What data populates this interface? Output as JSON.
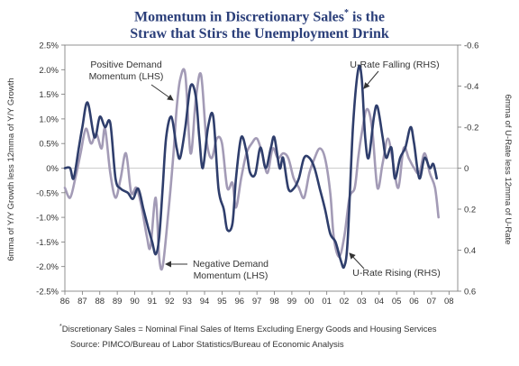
{
  "title": {
    "line1_pre": "Momentum in Discretionary Sales",
    "line1_mark": "*",
    "line1_post": " is the",
    "line2": "Straw that Stirs the Unemployment Drink"
  },
  "footnote": {
    "mark": "*",
    "text": "Discretionary Sales = Nominal Final Sales of Items Excluding Energy Goods and Housing Services"
  },
  "source": "Source: PIMCO/Bureau of Labor Statistics/Bureau of Economic Analysis",
  "colors": {
    "demand_series": "#a39bb6",
    "urate_series": "#2f3e6c",
    "axis": "#777777",
    "text": "#333333"
  },
  "chart_data": {
    "type": "line",
    "ylabel_left": "6mma of Y/Y Growth less 12mma of Y/Y Growth",
    "ylabel_right": "6mma of U-Rate less 12mma of U-Rate",
    "left_axis": {
      "range": [
        -2.5,
        2.5
      ],
      "ticks": [
        2.5,
        2.0,
        1.5,
        1.0,
        0.5,
        0,
        -0.5,
        -1.0,
        -1.5,
        -2.0,
        -2.5
      ],
      "tick_labels": [
        "2.5%",
        "2.0%",
        "1.5%",
        "1.0%",
        "0.5%",
        "0%",
        "-0.5%",
        "-1.0%",
        "-1.5%",
        "-2.0%",
        "-2.5%"
      ]
    },
    "right_axis": {
      "range": [
        0.6,
        -0.6
      ],
      "inverted": true,
      "ticks": [
        -0.6,
        -0.4,
        -0.2,
        0,
        0.2,
        0.4,
        0.6
      ],
      "tick_labels": [
        "-0.6",
        "-0.4",
        "-0.2",
        "0",
        "0.2",
        "0.4",
        "0.6"
      ]
    },
    "x_axis": {
      "range": [
        1986,
        2008.5
      ],
      "ticks": [
        1986,
        1987,
        1988,
        1989,
        1990,
        1991,
        1992,
        1993,
        1994,
        1995,
        1996,
        1997,
        1998,
        1999,
        2000,
        2001,
        2002,
        2003,
        2004,
        2005,
        2006,
        2007,
        2008
      ],
      "tick_labels": [
        "86",
        "87",
        "88",
        "89",
        "90",
        "91",
        "92",
        "93",
        "94",
        "95",
        "96",
        "97",
        "98",
        "99",
        "00",
        "01",
        "02",
        "03",
        "04",
        "05",
        "06",
        "07",
        "08"
      ]
    },
    "series": [
      {
        "axis": "left",
        "x": [
          1986.0,
          1986.3,
          1986.6,
          1986.9,
          1987.2,
          1987.5,
          1987.8,
          1988.1,
          1988.3,
          1988.6,
          1988.9,
          1989.2,
          1989.5,
          1989.8,
          1990.1,
          1990.4,
          1990.7,
          1990.9,
          1991.2,
          1991.4,
          1991.6,
          1991.9,
          1992.2,
          1992.4,
          1992.6,
          1992.9,
          1993.2,
          1993.5,
          1993.8,
          1994.1,
          1994.4,
          1994.7,
          1995.0,
          1995.3,
          1995.6,
          1995.8,
          1996.1,
          1996.4,
          1996.7,
          1997.0,
          1997.3,
          1997.6,
          1997.9,
          1998.2,
          1998.5,
          1998.8,
          1999.1,
          1999.4,
          1999.7,
          2000.0,
          2000.3,
          2000.6,
          2000.9,
          2001.2,
          2001.4,
          2001.7,
          2002.0,
          2002.3,
          2002.6,
          2002.8,
          2003.0,
          2003.3,
          2003.6,
          2003.9,
          2004.2,
          2004.5,
          2004.8,
          2005.1,
          2005.4,
          2005.7,
          2006.0,
          2006.3,
          2006.6,
          2006.9,
          2007.2,
          2007.4
        ],
        "values": [
          -0.4,
          -0.6,
          -0.2,
          0.3,
          0.8,
          0.5,
          0.7,
          0.4,
          0.8,
          -0.1,
          -0.6,
          -0.2,
          0.3,
          -0.5,
          -0.4,
          -0.8,
          -1.4,
          -1.6,
          -0.6,
          -1.8,
          -2.0,
          -1.0,
          0.2,
          1.2,
          1.8,
          1.9,
          0.3,
          1.4,
          1.9,
          0.6,
          0.2,
          0.6,
          0.5,
          -0.4,
          -0.3,
          -0.8,
          -0.2,
          0.3,
          0.5,
          0.6,
          0.3,
          -0.1,
          0.4,
          0.2,
          0.3,
          0.2,
          -0.2,
          -0.4,
          -0.6,
          -0.1,
          0.2,
          0.4,
          0.2,
          -0.5,
          -1.4,
          -1.8,
          -1.4,
          -0.6,
          -0.4,
          0.2,
          0.7,
          1.2,
          0.8,
          -0.4,
          0.1,
          0.6,
          0.1,
          -0.4,
          0.4,
          0.2,
          0.0,
          -0.1,
          0.3,
          -0.1,
          -0.4,
          -1.0
        ]
      },
      {
        "axis": "right",
        "x": [
          1986.0,
          1986.3,
          1986.5,
          1986.8,
          1987.0,
          1987.3,
          1987.7,
          1988.0,
          1988.3,
          1988.6,
          1988.9,
          1989.2,
          1989.6,
          1989.9,
          1990.2,
          1990.5,
          1990.8,
          1991.0,
          1991.2,
          1991.4,
          1991.6,
          1991.8,
          1992.1,
          1992.4,
          1992.6,
          1992.9,
          1993.2,
          1993.5,
          1993.7,
          1993.9,
          1994.2,
          1994.5,
          1994.8,
          1995.1,
          1995.3,
          1995.6,
          1995.8,
          1996.1,
          1996.4,
          1996.6,
          1996.9,
          1997.2,
          1997.5,
          1997.8,
          1998.0,
          1998.3,
          1998.5,
          1998.8,
          1999.1,
          1999.4,
          1999.7,
          2000.0,
          2000.3,
          2000.6,
          2000.9,
          2001.2,
          2001.5,
          2001.8,
          2002.0,
          2002.2,
          2002.5,
          2002.8,
          2003.0,
          2003.2,
          2003.4,
          2003.7,
          2003.9,
          2004.2,
          2004.4,
          2004.7,
          2004.9,
          2005.2,
          2005.5,
          2005.8,
          2006.0,
          2006.3,
          2006.6,
          2006.9,
          2007.1,
          2007.3
        ],
        "values": [
          0.0,
          0.0,
          0.05,
          -0.1,
          -0.2,
          -0.32,
          -0.15,
          -0.25,
          -0.2,
          -0.22,
          0.05,
          0.1,
          0.12,
          0.15,
          0.1,
          0.2,
          0.3,
          0.36,
          0.42,
          0.34,
          0.1,
          -0.15,
          -0.25,
          -0.1,
          -0.05,
          -0.2,
          -0.4,
          -0.35,
          -0.15,
          0.0,
          -0.2,
          -0.25,
          0.1,
          0.2,
          0.3,
          0.27,
          0.05,
          -0.15,
          -0.08,
          0.02,
          0.03,
          -0.1,
          0.0,
          -0.1,
          -0.15,
          0.0,
          -0.05,
          0.1,
          0.1,
          0.05,
          -0.05,
          -0.05,
          0.0,
          0.1,
          0.2,
          0.32,
          0.36,
          0.45,
          0.48,
          0.35,
          -0.2,
          -0.48,
          -0.44,
          -0.15,
          -0.05,
          -0.25,
          -0.3,
          -0.15,
          -0.05,
          -0.1,
          0.05,
          -0.05,
          -0.1,
          -0.2,
          -0.12,
          0.05,
          -0.05,
          0.0,
          -0.02,
          0.05
        ]
      }
    ],
    "annotations": [
      {
        "lines": [
          "Positive Demand",
          "Momentum (LHS)"
        ]
      },
      {
        "lines": [
          "U-Rate Falling (RHS)"
        ]
      },
      {
        "lines": [
          "Negative Demand",
          "Momentum (LHS)"
        ]
      },
      {
        "lines": [
          "U-Rate Rising (RHS)"
        ]
      }
    ]
  }
}
